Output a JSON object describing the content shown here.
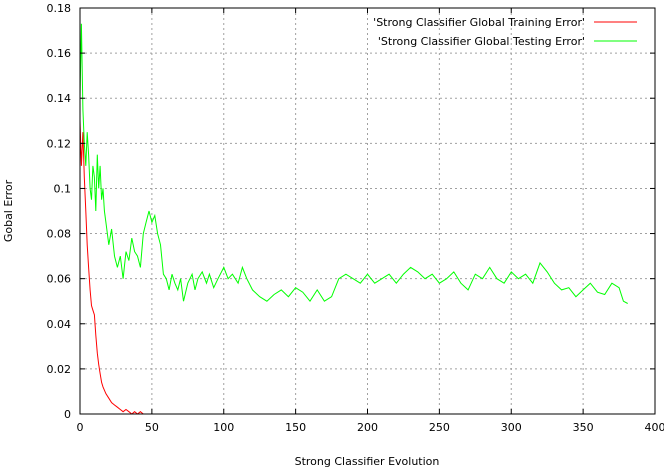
{
  "chart_data": {
    "type": "line",
    "title": "",
    "xlabel": "Strong Classifier Evolution",
    "ylabel": "Gobal Error",
    "xlim": [
      0,
      400
    ],
    "ylim": [
      0,
      0.18
    ],
    "x_ticks": [
      0,
      50,
      100,
      150,
      200,
      250,
      300,
      350,
      400
    ],
    "x_tick_labels": [
      "0",
      "50",
      "100",
      "150",
      "200",
      "250",
      "300",
      "350",
      "400"
    ],
    "y_ticks": [
      0,
      0.02,
      0.04,
      0.06,
      0.08,
      0.1,
      0.12,
      0.14,
      0.16,
      0.18
    ],
    "y_tick_labels": [
      "0",
      "0.02",
      "0.04",
      "0.06",
      "0.08",
      "0.1",
      "0.12",
      "0.14",
      "0.16",
      "0.18"
    ],
    "grid": true,
    "legend_position": "top-right",
    "series": [
      {
        "name": "'Strong Classifier Global Training Error'",
        "color": "#ff0000",
        "x": [
          0,
          1,
          2,
          3,
          4,
          5,
          6,
          7,
          8,
          9,
          10,
          11,
          12,
          13,
          14,
          15,
          16,
          18,
          20,
          22,
          24,
          26,
          28,
          30,
          32,
          34,
          36,
          38,
          40,
          42,
          44,
          45
        ],
        "y": [
          0.13,
          0.11,
          0.125,
          0.105,
          0.09,
          0.075,
          0.065,
          0.055,
          0.048,
          0.046,
          0.044,
          0.035,
          0.027,
          0.022,
          0.018,
          0.014,
          0.012,
          0.009,
          0.007,
          0.005,
          0.004,
          0.003,
          0.002,
          0.001,
          0.002,
          0.001,
          0.0,
          0.001,
          0.0,
          0.001,
          0.0,
          0.0
        ]
      },
      {
        "name": "'Strong Classifier Global Testing Error'",
        "color": "#00ff00",
        "x": [
          0,
          1,
          2,
          3,
          4,
          5,
          6,
          7,
          8,
          9,
          10,
          11,
          12,
          13,
          14,
          15,
          16,
          17,
          18,
          20,
          22,
          24,
          26,
          28,
          30,
          32,
          34,
          36,
          38,
          40,
          42,
          44,
          46,
          48,
          50,
          52,
          54,
          56,
          58,
          60,
          62,
          64,
          66,
          68,
          70,
          72,
          75,
          78,
          80,
          82,
          85,
          88,
          90,
          93,
          96,
          100,
          103,
          106,
          110,
          113,
          116,
          120,
          125,
          130,
          135,
          140,
          145,
          150,
          155,
          160,
          165,
          170,
          175,
          180,
          185,
          190,
          195,
          200,
          205,
          210,
          215,
          220,
          225,
          230,
          235,
          240,
          245,
          250,
          255,
          260,
          265,
          270,
          275,
          280,
          285,
          290,
          295,
          300,
          305,
          310,
          315,
          320,
          325,
          330,
          335,
          340,
          345,
          350,
          355,
          360,
          365,
          370,
          375,
          378,
          381
        ],
        "y": [
          0.14,
          0.173,
          0.135,
          0.12,
          0.11,
          0.125,
          0.115,
          0.1,
          0.095,
          0.11,
          0.105,
          0.09,
          0.115,
          0.1,
          0.11,
          0.095,
          0.1,
          0.09,
          0.085,
          0.075,
          0.082,
          0.07,
          0.065,
          0.07,
          0.06,
          0.072,
          0.068,
          0.078,
          0.072,
          0.07,
          0.065,
          0.08,
          0.085,
          0.09,
          0.085,
          0.088,
          0.08,
          0.075,
          0.062,
          0.06,
          0.055,
          0.062,
          0.058,
          0.055,
          0.06,
          0.05,
          0.058,
          0.062,
          0.055,
          0.06,
          0.063,
          0.058,
          0.062,
          0.056,
          0.06,
          0.065,
          0.06,
          0.062,
          0.058,
          0.065,
          0.06,
          0.055,
          0.052,
          0.05,
          0.053,
          0.055,
          0.052,
          0.056,
          0.054,
          0.05,
          0.055,
          0.05,
          0.052,
          0.06,
          0.062,
          0.06,
          0.058,
          0.062,
          0.058,
          0.06,
          0.062,
          0.058,
          0.062,
          0.065,
          0.063,
          0.06,
          0.062,
          0.058,
          0.06,
          0.063,
          0.058,
          0.055,
          0.062,
          0.06,
          0.065,
          0.06,
          0.058,
          0.063,
          0.06,
          0.062,
          0.058,
          0.067,
          0.063,
          0.058,
          0.055,
          0.056,
          0.052,
          0.055,
          0.058,
          0.054,
          0.053,
          0.058,
          0.056,
          0.05,
          0.049
        ]
      }
    ]
  }
}
